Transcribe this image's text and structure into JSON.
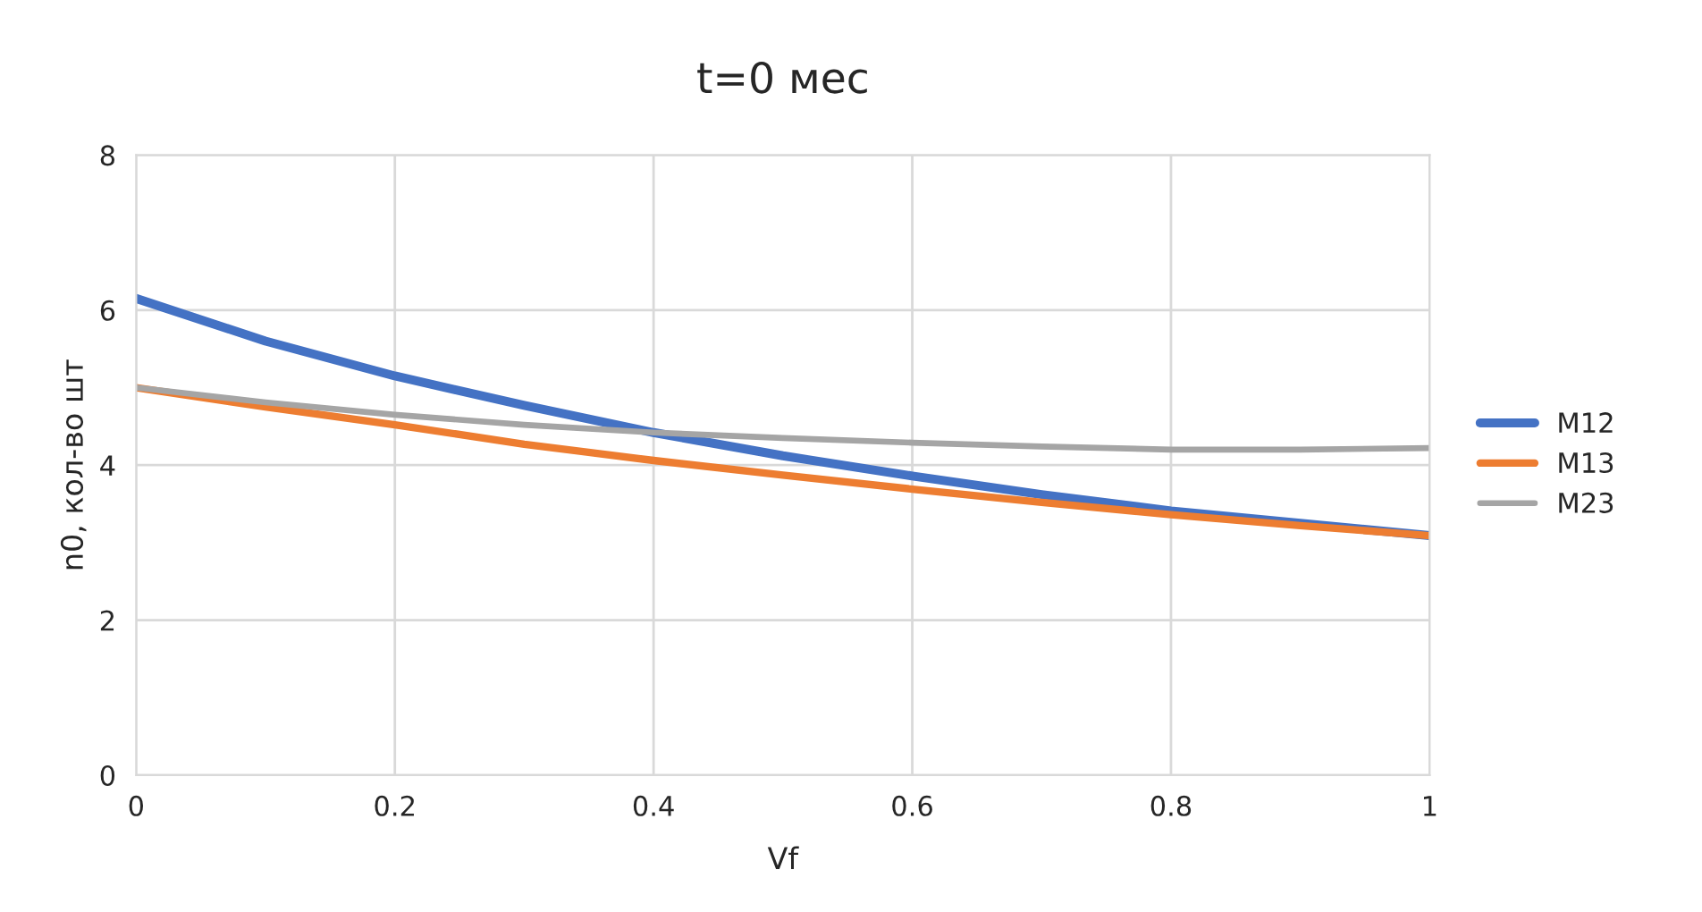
{
  "chart_data": {
    "type": "line",
    "title": "t=0 мес",
    "xlabel": "Vf",
    "ylabel": "n0, кол-во шт",
    "x": [
      0,
      0.1,
      0.2,
      0.3,
      0.4,
      0.5,
      0.6,
      0.7,
      0.8,
      0.9,
      1
    ],
    "series": [
      {
        "name": "M12",
        "color": "#4472c4",
        "values": [
          6.15,
          5.6,
          5.15,
          4.77,
          4.42,
          4.12,
          3.86,
          3.62,
          3.41,
          3.25,
          3.09
        ]
      },
      {
        "name": "M13",
        "color": "#ed7d31",
        "values": [
          5.0,
          4.75,
          4.52,
          4.27,
          4.06,
          3.87,
          3.69,
          3.52,
          3.36,
          3.22,
          3.09
        ]
      },
      {
        "name": "M23",
        "color": "#a5a5a5",
        "values": [
          5.0,
          4.81,
          4.65,
          4.52,
          4.42,
          4.35,
          4.29,
          4.24,
          4.2,
          4.2,
          4.22
        ]
      }
    ],
    "xlim": [
      0,
      1
    ],
    "xticks": [
      0,
      {
        "value": 0.2,
        "label": "0.2"
      },
      {
        "value": 0.4,
        "label": "0.4"
      },
      {
        "value": 0.6,
        "label": "0.6"
      },
      {
        "value": 0.8,
        "label": "0.8"
      },
      1
    ],
    "ylim": [
      0,
      8
    ],
    "yticks": [
      0,
      2,
      4,
      6,
      8
    ],
    "grid": true,
    "legend": "right",
    "marker": "none",
    "line_style": "solid"
  }
}
